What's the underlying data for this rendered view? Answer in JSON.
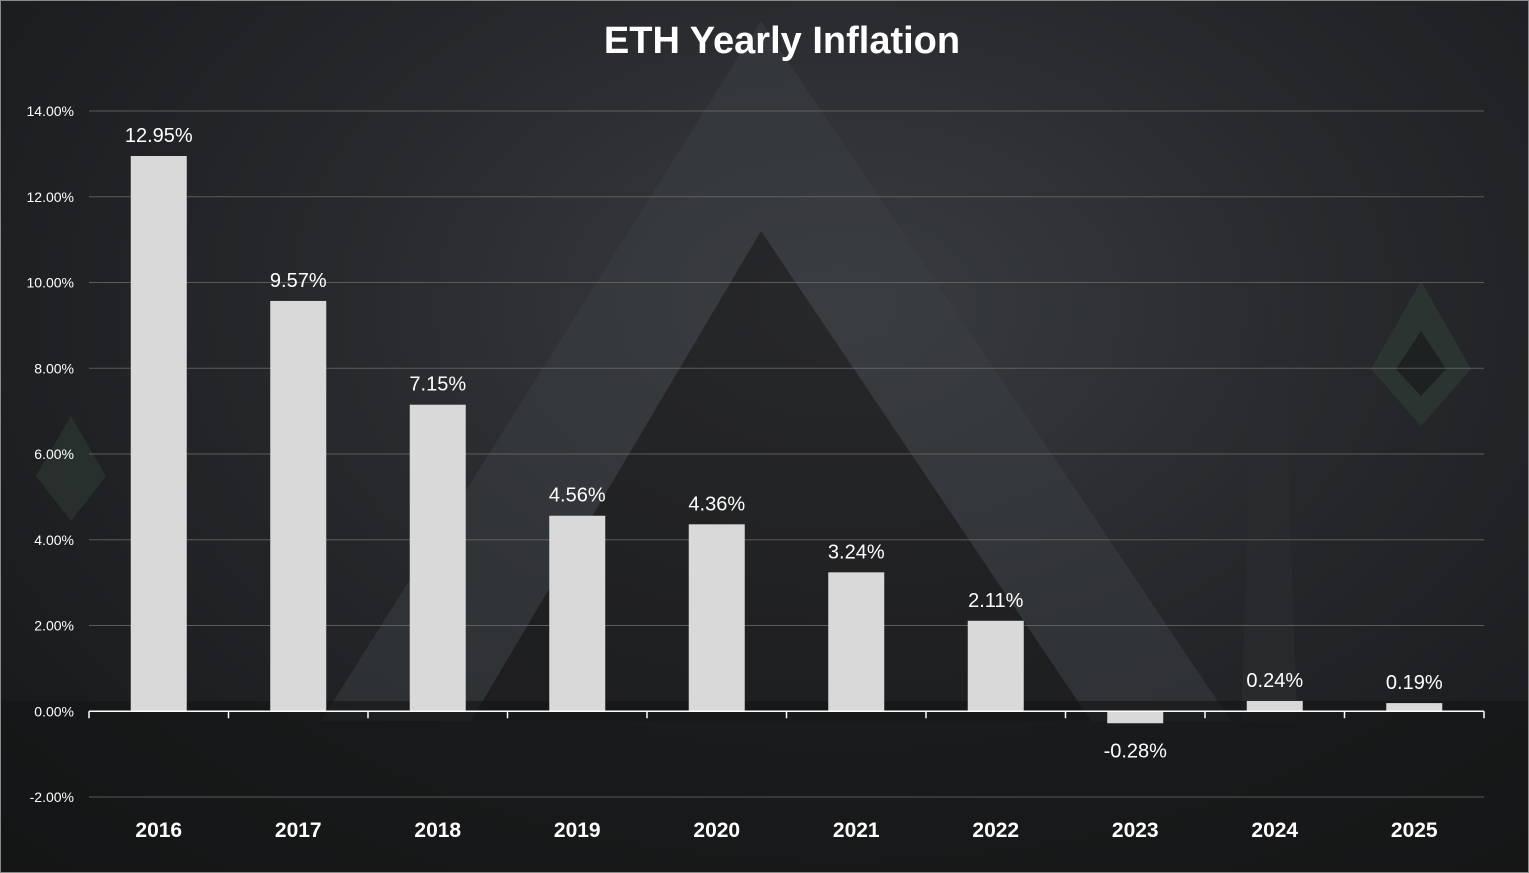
{
  "chart_data": {
    "type": "bar",
    "title": "ETH Yearly Inflation",
    "categories": [
      "2016",
      "2017",
      "2018",
      "2019",
      "2020",
      "2021",
      "2022",
      "2023",
      "2024",
      "2025"
    ],
    "values": [
      12.95,
      9.57,
      7.15,
      4.56,
      4.36,
      3.24,
      2.11,
      -0.28,
      0.24,
      0.19
    ],
    "data_labels": [
      "12.95%",
      "9.57%",
      "7.15%",
      "4.56%",
      "4.36%",
      "3.24%",
      "2.11%",
      "-0.28%",
      "0.24%",
      "0.19%"
    ],
    "y_ticks": [
      -2,
      0,
      2,
      4,
      6,
      8,
      10,
      12,
      14
    ],
    "y_tick_labels": [
      "-2.00%",
      "0.00%",
      "2.00%",
      "4.00%",
      "6.00%",
      "8.00%",
      "10.00%",
      "12.00%",
      "14.00%"
    ],
    "ylim": [
      -2,
      14
    ],
    "xlabel": "",
    "ylabel": "",
    "grid": true,
    "legend": "none",
    "bar_color": "#d9d9d9",
    "text_color": "#ffffff",
    "grid_color": "#6e6e6e"
  }
}
